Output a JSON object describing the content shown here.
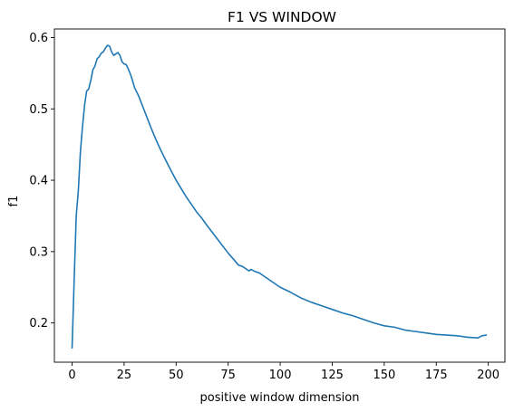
{
  "chart_data": {
    "type": "line",
    "title": "F1 VS WINDOW",
    "xlabel": "positive window dimension",
    "ylabel": "f1",
    "xlim": [
      -8.5,
      208
    ],
    "ylim": [
      0.145,
      0.612
    ],
    "xticks": [
      0,
      25,
      50,
      75,
      100,
      125,
      150,
      175,
      200
    ],
    "yticks": [
      0.2,
      0.3,
      0.4,
      0.5,
      0.6
    ],
    "ytick_labels": [
      "0.2",
      "0.3",
      "0.4",
      "0.5",
      "0.6"
    ],
    "grid": false,
    "series": [
      {
        "color": "#1f77b4",
        "x": [
          0,
          1,
          2,
          3,
          4,
          5,
          6,
          7,
          8,
          9,
          10,
          11,
          12,
          13,
          14,
          15,
          16,
          17,
          18,
          19,
          20,
          21,
          22,
          23,
          24,
          25,
          26,
          27,
          28,
          29,
          30,
          32,
          34,
          36,
          38,
          40,
          42,
          45,
          48,
          50,
          55,
          60,
          62,
          65,
          70,
          75,
          80,
          82,
          85,
          86,
          88,
          90,
          92,
          95,
          100,
          105,
          110,
          115,
          120,
          125,
          130,
          135,
          140,
          145,
          150,
          155,
          160,
          165,
          170,
          175,
          180,
          185,
          190,
          195,
          197,
          199
        ],
        "y": [
          0.165,
          0.26,
          0.35,
          0.385,
          0.44,
          0.475,
          0.505,
          0.525,
          0.528,
          0.54,
          0.555,
          0.56,
          0.57,
          0.573,
          0.578,
          0.58,
          0.585,
          0.589,
          0.588,
          0.58,
          0.575,
          0.577,
          0.579,
          0.575,
          0.566,
          0.563,
          0.562,
          0.556,
          0.549,
          0.54,
          0.53,
          0.518,
          0.503,
          0.488,
          0.473,
          0.459,
          0.446,
          0.428,
          0.411,
          0.4,
          0.376,
          0.355,
          0.348,
          0.336,
          0.317,
          0.298,
          0.281,
          0.279,
          0.273,
          0.275,
          0.272,
          0.27,
          0.266,
          0.26,
          0.25,
          0.243,
          0.235,
          0.229,
          0.224,
          0.219,
          0.214,
          0.21,
          0.205,
          0.2,
          0.196,
          0.194,
          0.19,
          0.188,
          0.186,
          0.184,
          0.183,
          0.182,
          0.18,
          0.179,
          0.182,
          0.183
        ]
      }
    ]
  }
}
